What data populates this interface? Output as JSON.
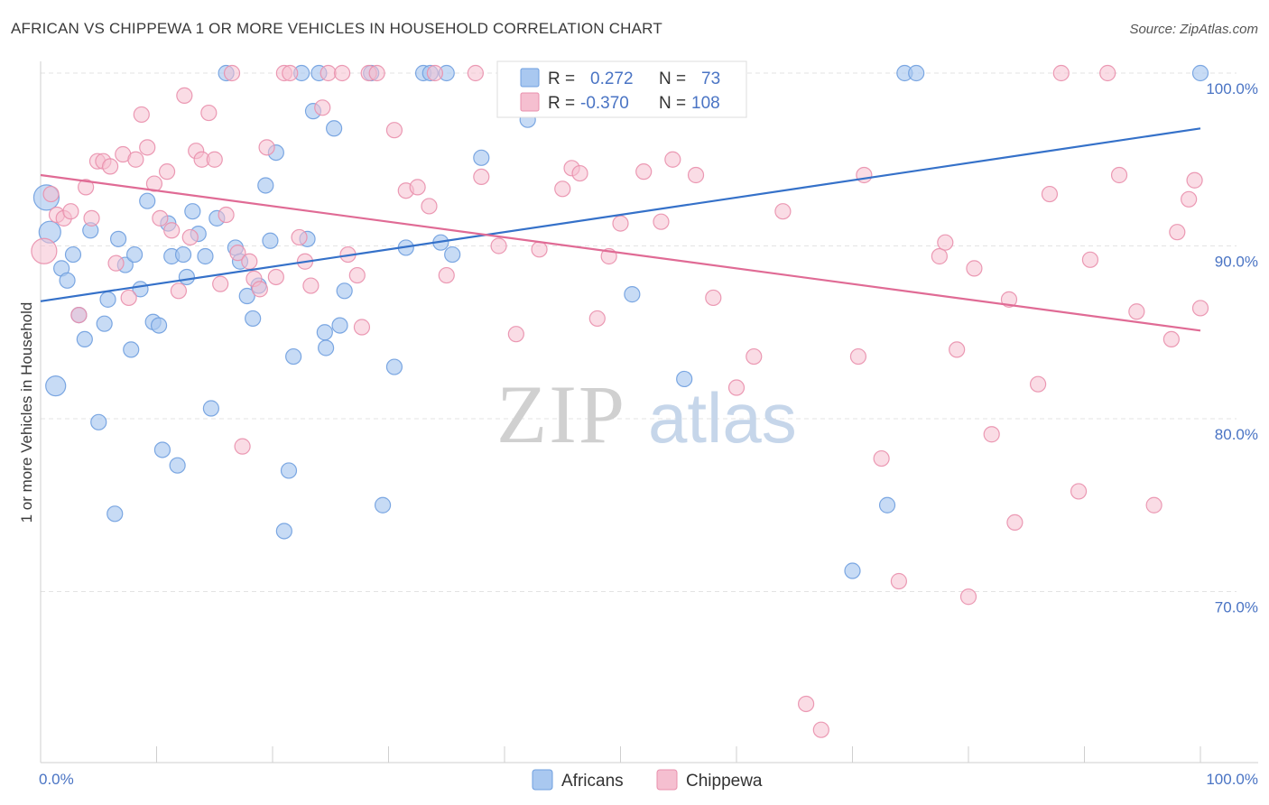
{
  "header": {
    "title": "AFRICAN VS CHIPPEWA 1 OR MORE VEHICLES IN HOUSEHOLD CORRELATION CHART",
    "source": "Source: ZipAtlas.com"
  },
  "colors": {
    "africans_fill": "#a9c8f0",
    "africans_stroke": "#6f9fdf",
    "africans_line": "#3571c9",
    "chippewa_fill": "#f5bfd0",
    "chippewa_stroke": "#e98fac",
    "chippewa_line": "#e06b95",
    "tick_text": "#4a74c4",
    "grid": "#e3e3e3"
  },
  "legend": {
    "r_label": "R =",
    "n_label": "N =",
    "africans": {
      "r": "0.272",
      "n": "73"
    },
    "chippewa": {
      "r": "-0.370",
      "n": "108"
    }
  },
  "watermark": {
    "zip": "ZIP",
    "atlas": "atlas"
  },
  "chart_data": {
    "type": "scatter",
    "ylabel": "1 or more Vehicles in Household",
    "xlim": [
      0,
      100
    ],
    "ylim": [
      61,
      101
    ],
    "x_tick_labels": [
      "0.0%",
      "100.0%"
    ],
    "y_ticks": [
      {
        "value": 100,
        "label": "100.0%"
      },
      {
        "value": 90,
        "label": "90.0%"
      },
      {
        "value": 80,
        "label": "80.0%"
      },
      {
        "value": 70,
        "label": "70.0%"
      }
    ],
    "grid": true,
    "legend_position": "top-center",
    "series": [
      {
        "name": "Africans",
        "trend": {
          "x": [
            0,
            100
          ],
          "y": [
            86.8,
            96.8
          ]
        },
        "points": [
          [
            0.5,
            92.8
          ],
          [
            0.8,
            90.8
          ],
          [
            1.3,
            81.9
          ],
          [
            1.8,
            88.7
          ],
          [
            2.3,
            88.0
          ],
          [
            2.8,
            89.5
          ],
          [
            3.3,
            86.0
          ],
          [
            3.8,
            84.6
          ],
          [
            4.3,
            90.9
          ],
          [
            5.0,
            79.8
          ],
          [
            5.5,
            85.5
          ],
          [
            5.8,
            86.9
          ],
          [
            6.4,
            74.5
          ],
          [
            6.7,
            90.4
          ],
          [
            7.3,
            88.9
          ],
          [
            7.8,
            84.0
          ],
          [
            8.1,
            89.5
          ],
          [
            8.6,
            87.5
          ],
          [
            9.2,
            92.6
          ],
          [
            9.7,
            85.6
          ],
          [
            10.2,
            85.4
          ],
          [
            10.5,
            78.2
          ],
          [
            11.0,
            91.3
          ],
          [
            11.3,
            89.4
          ],
          [
            11.8,
            77.3
          ],
          [
            12.3,
            89.5
          ],
          [
            12.6,
            88.2
          ],
          [
            13.1,
            92.0
          ],
          [
            13.6,
            90.7
          ],
          [
            14.2,
            89.4
          ],
          [
            14.7,
            80.6
          ],
          [
            15.2,
            91.6
          ],
          [
            16.0,
            100.0
          ],
          [
            16.8,
            89.9
          ],
          [
            17.2,
            89.1
          ],
          [
            17.8,
            87.1
          ],
          [
            18.3,
            85.8
          ],
          [
            18.8,
            87.7
          ],
          [
            19.4,
            93.5
          ],
          [
            19.8,
            90.3
          ],
          [
            20.3,
            95.4
          ],
          [
            21.4,
            77.0
          ],
          [
            21.8,
            83.6
          ],
          [
            22.5,
            100.0
          ],
          [
            23.0,
            90.4
          ],
          [
            23.5,
            97.8
          ],
          [
            24.0,
            100.0
          ],
          [
            24.6,
            84.1
          ],
          [
            25.3,
            96.8
          ],
          [
            25.8,
            85.4
          ],
          [
            26.2,
            87.4
          ],
          [
            28.5,
            100.0
          ],
          [
            30.5,
            83.0
          ],
          [
            31.5,
            89.9
          ],
          [
            33.0,
            100.0
          ],
          [
            33.6,
            100.0
          ],
          [
            34.5,
            90.2
          ],
          [
            35.0,
            100.0
          ],
          [
            35.5,
            89.5
          ],
          [
            38.0,
            95.1
          ],
          [
            42.0,
            97.3
          ],
          [
            44.3,
            100.0
          ],
          [
            51.0,
            87.2
          ],
          [
            55.5,
            82.3
          ],
          [
            57.0,
            100.0
          ],
          [
            70.0,
            71.2
          ],
          [
            73.0,
            75.0
          ],
          [
            74.5,
            100.0
          ],
          [
            75.5,
            100.0
          ],
          [
            100.0,
            100.0
          ],
          [
            21.0,
            73.5
          ],
          [
            29.5,
            75.0
          ],
          [
            24.5,
            85.0
          ]
        ]
      },
      {
        "name": "Chippewa",
        "trend": {
          "x": [
            0,
            100
          ],
          "y": [
            94.1,
            85.1
          ]
        },
        "points": [
          [
            0.3,
            89.7
          ],
          [
            0.9,
            93.0
          ],
          [
            1.4,
            91.8
          ],
          [
            2.0,
            91.6
          ],
          [
            2.6,
            92.0
          ],
          [
            3.3,
            86.0
          ],
          [
            3.9,
            93.4
          ],
          [
            4.4,
            91.6
          ],
          [
            4.9,
            94.9
          ],
          [
            5.4,
            94.9
          ],
          [
            6.0,
            94.6
          ],
          [
            6.5,
            89.0
          ],
          [
            7.1,
            95.3
          ],
          [
            7.6,
            87.0
          ],
          [
            8.2,
            95.0
          ],
          [
            8.7,
            97.6
          ],
          [
            9.2,
            95.7
          ],
          [
            9.8,
            93.6
          ],
          [
            10.3,
            91.6
          ],
          [
            10.9,
            94.3
          ],
          [
            11.3,
            90.9
          ],
          [
            11.9,
            87.4
          ],
          [
            12.4,
            98.7
          ],
          [
            12.9,
            90.5
          ],
          [
            13.4,
            95.5
          ],
          [
            13.9,
            95.0
          ],
          [
            14.5,
            97.7
          ],
          [
            15.0,
            95.0
          ],
          [
            15.5,
            87.8
          ],
          [
            16.0,
            91.8
          ],
          [
            16.5,
            100.0
          ],
          [
            17.0,
            89.6
          ],
          [
            17.4,
            78.4
          ],
          [
            18.0,
            89.1
          ],
          [
            18.4,
            88.1
          ],
          [
            18.9,
            87.5
          ],
          [
            19.5,
            95.7
          ],
          [
            20.3,
            88.2
          ],
          [
            21.0,
            100.0
          ],
          [
            21.5,
            100.0
          ],
          [
            22.3,
            90.5
          ],
          [
            22.8,
            89.1
          ],
          [
            23.3,
            87.7
          ],
          [
            24.3,
            98.0
          ],
          [
            24.8,
            100.0
          ],
          [
            26.0,
            100.0
          ],
          [
            26.5,
            89.5
          ],
          [
            27.3,
            88.3
          ],
          [
            27.7,
            85.3
          ],
          [
            28.3,
            100.0
          ],
          [
            29.0,
            100.0
          ],
          [
            30.5,
            96.7
          ],
          [
            31.5,
            93.2
          ],
          [
            32.5,
            93.4
          ],
          [
            33.5,
            92.3
          ],
          [
            34.0,
            100.0
          ],
          [
            35.0,
            88.3
          ],
          [
            37.5,
            100.0
          ],
          [
            38.0,
            94.0
          ],
          [
            39.5,
            90.0
          ],
          [
            40.5,
            100.0
          ],
          [
            41.0,
            84.9
          ],
          [
            42.0,
            100.0
          ],
          [
            43.0,
            89.8
          ],
          [
            44.5,
            100.0
          ],
          [
            45.0,
            93.3
          ],
          [
            45.8,
            94.5
          ],
          [
            46.5,
            94.2
          ],
          [
            47.5,
            100.0
          ],
          [
            48.0,
            85.8
          ],
          [
            49.0,
            89.4
          ],
          [
            50.0,
            91.3
          ],
          [
            52.0,
            94.3
          ],
          [
            53.5,
            91.4
          ],
          [
            54.5,
            95.0
          ],
          [
            56.5,
            94.1
          ],
          [
            58.0,
            87.0
          ],
          [
            60.0,
            81.8
          ],
          [
            61.5,
            83.6
          ],
          [
            64.0,
            92.0
          ],
          [
            66.0,
            63.5
          ],
          [
            67.3,
            62.0
          ],
          [
            70.5,
            83.6
          ],
          [
            71.0,
            94.1
          ],
          [
            72.5,
            77.7
          ],
          [
            74.0,
            70.6
          ],
          [
            77.5,
            89.4
          ],
          [
            78.0,
            90.2
          ],
          [
            79.0,
            84.0
          ],
          [
            80.0,
            69.7
          ],
          [
            80.5,
            88.7
          ],
          [
            82.0,
            79.1
          ],
          [
            83.5,
            86.9
          ],
          [
            84.0,
            74.0
          ],
          [
            86.0,
            82.0
          ],
          [
            87.0,
            93.0
          ],
          [
            88.0,
            100.0
          ],
          [
            89.5,
            75.8
          ],
          [
            90.5,
            89.2
          ],
          [
            92.0,
            100.0
          ],
          [
            93.0,
            94.1
          ],
          [
            94.5,
            86.2
          ],
          [
            96.0,
            75.0
          ],
          [
            97.5,
            84.6
          ],
          [
            98.0,
            90.8
          ],
          [
            99.0,
            92.7
          ],
          [
            99.5,
            93.8
          ],
          [
            100.0,
            86.4
          ]
        ]
      }
    ]
  }
}
